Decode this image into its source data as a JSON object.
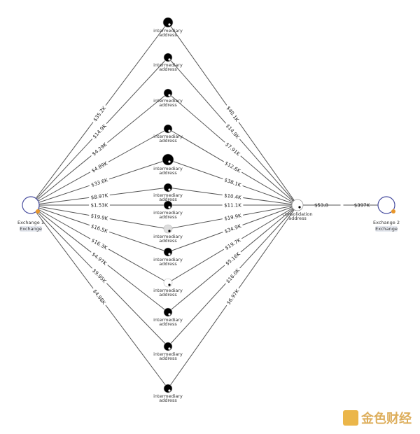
{
  "nodes": {
    "exchange1": {
      "label": "Exchange 1",
      "tag": "Exchange"
    },
    "exchange2": {
      "label": "Exchange 2",
      "tag": "Exchange"
    },
    "consolidation": {
      "label": "consolidation address"
    },
    "intermediary_label": "intermediary address",
    "intermediaries": [
      {
        "fill": "#000000"
      },
      {
        "fill": "#000000"
      },
      {
        "fill": "#000000"
      },
      {
        "fill": "#000000"
      },
      {
        "fill": "#000000"
      },
      {
        "fill": "#000000"
      },
      {
        "fill": "#000000"
      },
      {
        "fill": "#dddddd"
      },
      {
        "fill": "#000000"
      },
      {
        "fill": "#ffffff"
      },
      {
        "fill": "#000000"
      },
      {
        "fill": "#000000"
      },
      {
        "fill": "#000000"
      }
    ]
  },
  "edges_in": [
    "$35.2K",
    "$14.9K",
    "$4.29K",
    "$4.89K",
    "$33.6K",
    "$8.97K",
    "$1.53K",
    "$19.9K",
    "$16.5K",
    "$16.3K",
    "$4.97K",
    "$9.95K",
    "$4.98K"
  ],
  "edges_out": [
    "$40.1K",
    "$14.9K",
    "$7.91K",
    "$12.6K",
    "$38.1K",
    "$10.4K",
    "$11.1K",
    "$19.9K",
    "$34.9K",
    "$19.7K",
    "$5.16K",
    "$16.0K",
    "$6.97K"
  ],
  "edge_consolidation_to_exchange2": "$397K",
  "edge_exchange2_to_consolidation": "$53.8",
  "watermark": "金色财经"
}
